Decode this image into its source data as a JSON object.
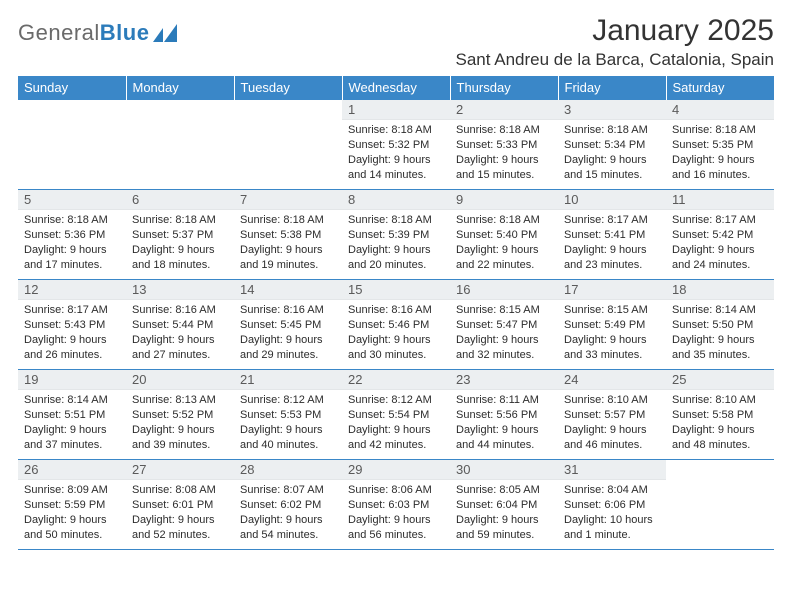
{
  "logo": {
    "general": "General",
    "blue": "Blue"
  },
  "title": {
    "month_year": "January 2025",
    "location": "Sant Andreu de la Barca, Catalonia, Spain"
  },
  "colors": {
    "header_bg": "#3a87c8",
    "daynum_bg": "#eceff1",
    "rule": "#3a87c8",
    "logo_gray": "#6a6a6a",
    "logo_blue": "#2b7bba"
  },
  "weekdays": [
    "Sunday",
    "Monday",
    "Tuesday",
    "Wednesday",
    "Thursday",
    "Friday",
    "Saturday"
  ],
  "weeks": [
    [
      null,
      null,
      null,
      {
        "n": "1",
        "sr": "8:18 AM",
        "ss": "5:32 PM",
        "dl": "9 hours and 14 minutes."
      },
      {
        "n": "2",
        "sr": "8:18 AM",
        "ss": "5:33 PM",
        "dl": "9 hours and 15 minutes."
      },
      {
        "n": "3",
        "sr": "8:18 AM",
        "ss": "5:34 PM",
        "dl": "9 hours and 15 minutes."
      },
      {
        "n": "4",
        "sr": "8:18 AM",
        "ss": "5:35 PM",
        "dl": "9 hours and 16 minutes."
      }
    ],
    [
      {
        "n": "5",
        "sr": "8:18 AM",
        "ss": "5:36 PM",
        "dl": "9 hours and 17 minutes."
      },
      {
        "n": "6",
        "sr": "8:18 AM",
        "ss": "5:37 PM",
        "dl": "9 hours and 18 minutes."
      },
      {
        "n": "7",
        "sr": "8:18 AM",
        "ss": "5:38 PM",
        "dl": "9 hours and 19 minutes."
      },
      {
        "n": "8",
        "sr": "8:18 AM",
        "ss": "5:39 PM",
        "dl": "9 hours and 20 minutes."
      },
      {
        "n": "9",
        "sr": "8:18 AM",
        "ss": "5:40 PM",
        "dl": "9 hours and 22 minutes."
      },
      {
        "n": "10",
        "sr": "8:17 AM",
        "ss": "5:41 PM",
        "dl": "9 hours and 23 minutes."
      },
      {
        "n": "11",
        "sr": "8:17 AM",
        "ss": "5:42 PM",
        "dl": "9 hours and 24 minutes."
      }
    ],
    [
      {
        "n": "12",
        "sr": "8:17 AM",
        "ss": "5:43 PM",
        "dl": "9 hours and 26 minutes."
      },
      {
        "n": "13",
        "sr": "8:16 AM",
        "ss": "5:44 PM",
        "dl": "9 hours and 27 minutes."
      },
      {
        "n": "14",
        "sr": "8:16 AM",
        "ss": "5:45 PM",
        "dl": "9 hours and 29 minutes."
      },
      {
        "n": "15",
        "sr": "8:16 AM",
        "ss": "5:46 PM",
        "dl": "9 hours and 30 minutes."
      },
      {
        "n": "16",
        "sr": "8:15 AM",
        "ss": "5:47 PM",
        "dl": "9 hours and 32 minutes."
      },
      {
        "n": "17",
        "sr": "8:15 AM",
        "ss": "5:49 PM",
        "dl": "9 hours and 33 minutes."
      },
      {
        "n": "18",
        "sr": "8:14 AM",
        "ss": "5:50 PM",
        "dl": "9 hours and 35 minutes."
      }
    ],
    [
      {
        "n": "19",
        "sr": "8:14 AM",
        "ss": "5:51 PM",
        "dl": "9 hours and 37 minutes."
      },
      {
        "n": "20",
        "sr": "8:13 AM",
        "ss": "5:52 PM",
        "dl": "9 hours and 39 minutes."
      },
      {
        "n": "21",
        "sr": "8:12 AM",
        "ss": "5:53 PM",
        "dl": "9 hours and 40 minutes."
      },
      {
        "n": "22",
        "sr": "8:12 AM",
        "ss": "5:54 PM",
        "dl": "9 hours and 42 minutes."
      },
      {
        "n": "23",
        "sr": "8:11 AM",
        "ss": "5:56 PM",
        "dl": "9 hours and 44 minutes."
      },
      {
        "n": "24",
        "sr": "8:10 AM",
        "ss": "5:57 PM",
        "dl": "9 hours and 46 minutes."
      },
      {
        "n": "25",
        "sr": "8:10 AM",
        "ss": "5:58 PM",
        "dl": "9 hours and 48 minutes."
      }
    ],
    [
      {
        "n": "26",
        "sr": "8:09 AM",
        "ss": "5:59 PM",
        "dl": "9 hours and 50 minutes."
      },
      {
        "n": "27",
        "sr": "8:08 AM",
        "ss": "6:01 PM",
        "dl": "9 hours and 52 minutes."
      },
      {
        "n": "28",
        "sr": "8:07 AM",
        "ss": "6:02 PM",
        "dl": "9 hours and 54 minutes."
      },
      {
        "n": "29",
        "sr": "8:06 AM",
        "ss": "6:03 PM",
        "dl": "9 hours and 56 minutes."
      },
      {
        "n": "30",
        "sr": "8:05 AM",
        "ss": "6:04 PM",
        "dl": "9 hours and 59 minutes."
      },
      {
        "n": "31",
        "sr": "8:04 AM",
        "ss": "6:06 PM",
        "dl": "10 hours and 1 minute."
      },
      null
    ]
  ],
  "labels": {
    "sunrise": "Sunrise:",
    "sunset": "Sunset:",
    "daylight": "Daylight:"
  }
}
